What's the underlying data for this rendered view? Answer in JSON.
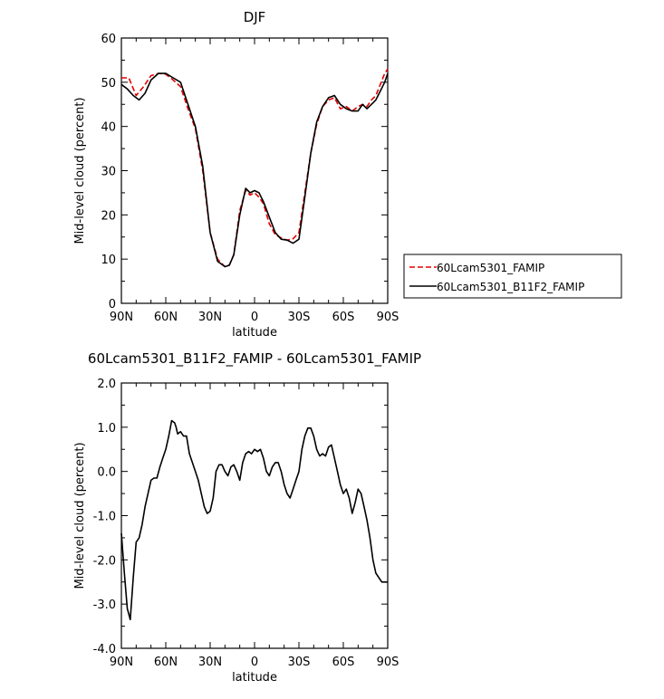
{
  "chart_data": [
    {
      "type": "line",
      "title": "DJF",
      "xlabel": "latitude",
      "ylabel": "Mid-level cloud (percent)",
      "xlim": [
        90,
        -90
      ],
      "ylim": [
        0,
        60
      ],
      "yticks": [
        0,
        10,
        20,
        30,
        40,
        50,
        60
      ],
      "ytick_labels": [
        "0",
        "10",
        "20",
        "30",
        "40",
        "50",
        "60"
      ],
      "xticks": [
        90,
        60,
        30,
        0,
        -30,
        -60,
        -90
      ],
      "xtick_labels": [
        "90N",
        "60N",
        "30N",
        "0",
        "30S",
        "60S",
        "90S"
      ],
      "grid": false,
      "legend": {
        "placement": "right",
        "entries": [
          "60Lcam5301_FAMIP",
          "60Lcam5301_B11F2_FAMIP"
        ]
      },
      "series": [
        {
          "name": "60Lcam5301_FAMIP",
          "color": "#e60000",
          "dash": "dashed",
          "x": [
            90,
            85,
            80,
            75,
            70,
            65,
            60,
            55,
            50,
            45,
            40,
            35,
            30,
            25,
            20,
            17,
            14,
            10,
            6,
            3,
            0,
            -3,
            -6,
            -10,
            -14,
            -18,
            -22,
            -26,
            -30,
            -34,
            -38,
            -42,
            -46,
            -50,
            -54,
            -58,
            -62,
            -66,
            -70,
            -73,
            -76,
            -79,
            -82,
            -85,
            -88,
            -90
          ],
          "y": [
            51,
            51,
            47,
            49,
            51.5,
            52,
            51.8,
            50.5,
            49,
            44,
            39.5,
            30,
            16,
            10,
            8.3,
            8.7,
            11,
            21,
            25.5,
            24.5,
            25,
            24,
            22.5,
            18,
            15.5,
            14.8,
            14.3,
            14.6,
            16,
            25,
            34,
            40.5,
            44.5,
            46,
            46.5,
            44,
            44.5,
            43.5,
            44.5,
            45,
            44.5,
            46,
            47,
            49.5,
            52,
            53
          ]
        },
        {
          "name": "60Lcam5301_B11F2_FAMIP",
          "color": "#000000",
          "dash": "solid",
          "x": [
            90,
            86,
            82,
            78,
            74,
            70,
            65,
            60,
            55,
            50,
            45,
            40,
            35,
            30,
            25,
            20,
            17,
            14,
            10,
            6,
            3,
            0,
            -3,
            -6,
            -10,
            -14,
            -18,
            -22,
            -26,
            -30,
            -34,
            -38,
            -42,
            -46,
            -50,
            -54,
            -58,
            -62,
            -66,
            -70,
            -73,
            -76,
            -79,
            -82,
            -85,
            -88,
            -90
          ],
          "y": [
            49.5,
            48.5,
            47,
            46,
            47.5,
            50.5,
            52,
            52,
            51,
            50,
            45,
            40,
            31,
            16,
            9.5,
            8.3,
            8.6,
            11,
            20,
            26,
            25,
            25.5,
            25,
            23,
            19.5,
            16,
            14.5,
            14.3,
            13.6,
            14.5,
            24,
            34,
            41,
            44.5,
            46.5,
            47,
            45,
            44,
            43.5,
            43.5,
            45,
            44,
            45,
            46,
            48,
            50,
            52
          ]
        }
      ]
    },
    {
      "type": "line",
      "title": "60Lcam5301_B11F2_FAMIP - 60Lcam5301_FAMIP",
      "xlabel": "latitude",
      "ylabel": "Mid-level cloud (percent)",
      "xlim": [
        90,
        -90
      ],
      "ylim": [
        -4,
        2
      ],
      "yticks": [
        -4,
        -3,
        -2,
        -1,
        0,
        1,
        2
      ],
      "ytick_labels": [
        "-4.0",
        "-3.0",
        "-2.0",
        "-1.0",
        "0.0",
        "1.0",
        "2.0"
      ],
      "xticks": [
        90,
        60,
        30,
        0,
        -30,
        -60,
        -90
      ],
      "xtick_labels": [
        "90N",
        "60N",
        "30N",
        "0",
        "30S",
        "60S",
        "90S"
      ],
      "grid": false,
      "series": [
        {
          "color": "#000000",
          "dash": "solid",
          "x": [
            90,
            88,
            86,
            84,
            82,
            80,
            78,
            76,
            74,
            72,
            70,
            68,
            66,
            64,
            62,
            60,
            58,
            56,
            54,
            53,
            52,
            50,
            48,
            46,
            44,
            42,
            40,
            38,
            36,
            34,
            32,
            30,
            28,
            26,
            24,
            22,
            20,
            18,
            16,
            14,
            12,
            10,
            8,
            6,
            4,
            2,
            0,
            -2,
            -4,
            -6,
            -8,
            -10,
            -12,
            -14,
            -16,
            -18,
            -20,
            -22,
            -24,
            -26,
            -28,
            -30,
            -32,
            -34,
            -36,
            -38,
            -40,
            -42,
            -44,
            -46,
            -48,
            -50,
            -52,
            -54,
            -56,
            -58,
            -60,
            -62,
            -64,
            -66,
            -68,
            -70,
            -72,
            -74,
            -76,
            -78,
            -80,
            -82,
            -84,
            -86,
            -88,
            -90
          ],
          "y": [
            -1.4,
            -2.3,
            -3.1,
            -3.35,
            -2.4,
            -1.6,
            -1.5,
            -1.2,
            -0.8,
            -0.5,
            -0.2,
            -0.15,
            -0.15,
            0.1,
            0.3,
            0.5,
            0.8,
            1.15,
            1.1,
            1.0,
            0.85,
            0.9,
            0.8,
            0.8,
            0.4,
            0.2,
            0.0,
            -0.2,
            -0.5,
            -0.8,
            -0.95,
            -0.9,
            -0.6,
            0.0,
            0.15,
            0.15,
            0.0,
            -0.1,
            0.1,
            0.15,
            0.0,
            -0.2,
            0.2,
            0.4,
            0.45,
            0.4,
            0.5,
            0.45,
            0.5,
            0.3,
            0.0,
            -0.1,
            0.1,
            0.2,
            0.2,
            0.0,
            -0.3,
            -0.5,
            -0.6,
            -0.4,
            -0.2,
            0.0,
            0.5,
            0.8,
            0.98,
            0.98,
            0.8,
            0.5,
            0.35,
            0.4,
            0.35,
            0.55,
            0.6,
            0.3,
            0.0,
            -0.3,
            -0.5,
            -0.4,
            -0.6,
            -0.95,
            -0.7,
            -0.4,
            -0.5,
            -0.8,
            -1.1,
            -1.5,
            -2.0,
            -2.3,
            -2.4,
            -2.5,
            -2.5,
            -2.5
          ]
        }
      ]
    }
  ]
}
